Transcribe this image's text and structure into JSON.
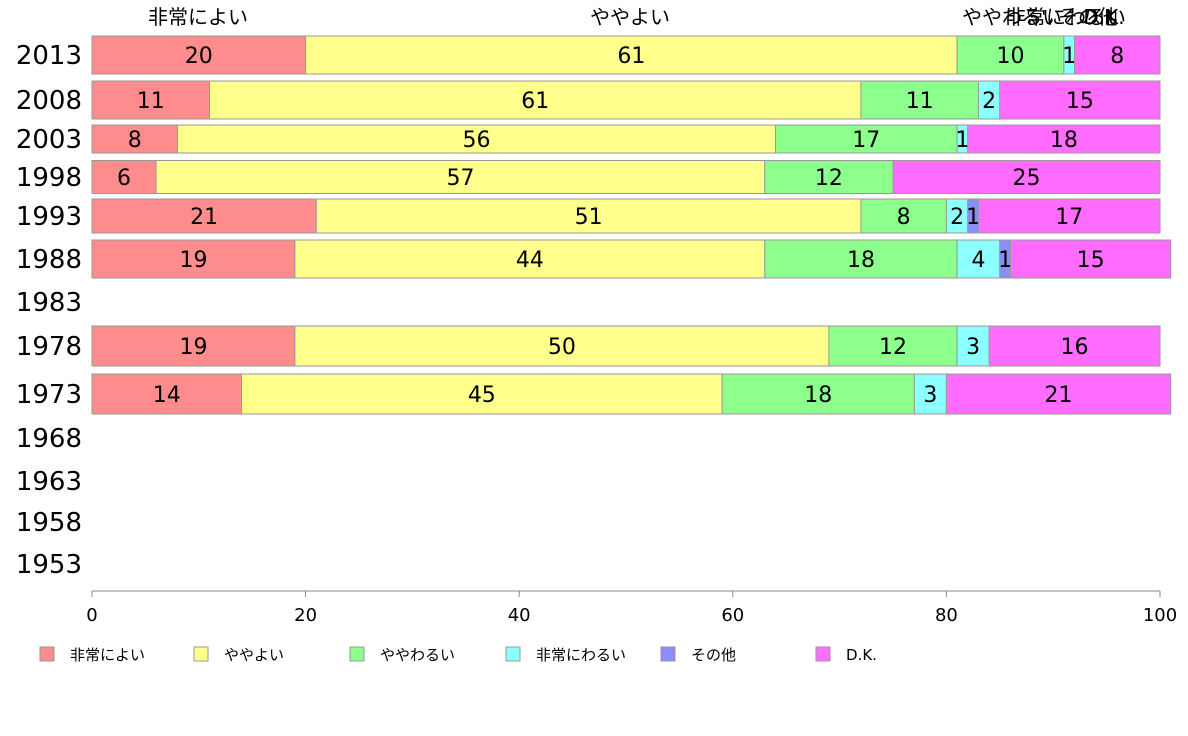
{
  "chart_data": {
    "type": "bar",
    "orientation": "horizontal",
    "stacked": true,
    "categories": [
      "2013",
      "2008",
      "2003",
      "1998",
      "1993",
      "1988",
      "1983",
      "1978",
      "1973",
      "1968",
      "1963",
      "1958",
      "1953"
    ],
    "series": [
      {
        "name": "非常によい",
        "color": "#ff8c8c",
        "values": [
          20,
          11,
          8,
          6,
          21,
          19,
          null,
          19,
          14,
          null,
          null,
          null,
          null
        ]
      },
      {
        "name": "ややよい",
        "color": "#ffff8c",
        "values": [
          61,
          61,
          56,
          57,
          51,
          44,
          null,
          50,
          45,
          null,
          null,
          null,
          null
        ]
      },
      {
        "name": "ややわるい",
        "color": "#8cff8c",
        "values": [
          10,
          11,
          17,
          12,
          8,
          18,
          null,
          12,
          18,
          null,
          null,
          null,
          null
        ]
      },
      {
        "name": "非常にわるい",
        "color": "#8cffff",
        "values": [
          1,
          2,
          1,
          0,
          2,
          4,
          null,
          3,
          3,
          null,
          null,
          null,
          null
        ]
      },
      {
        "name": "その他",
        "color": "#8c8cff",
        "values": [
          0,
          0,
          0,
          0,
          1,
          1,
          null,
          0,
          0,
          null,
          null,
          null,
          null
        ]
      },
      {
        "name": "D.K.",
        "color": "#ff6cff",
        "values": [
          8,
          15,
          18,
          25,
          17,
          15,
          null,
          16,
          21,
          null,
          null,
          null,
          null
        ]
      }
    ],
    "top_labels": [
      "非常によい",
      "ややよい",
      "ややわるい",
      "非常にわるい",
      "その他",
      "D.K."
    ],
    "xlim": [
      0,
      100
    ],
    "xticks": [
      "0",
      "20",
      "40",
      "60",
      "80",
      "100"
    ],
    "legend_position": "bottom",
    "grid": false
  }
}
